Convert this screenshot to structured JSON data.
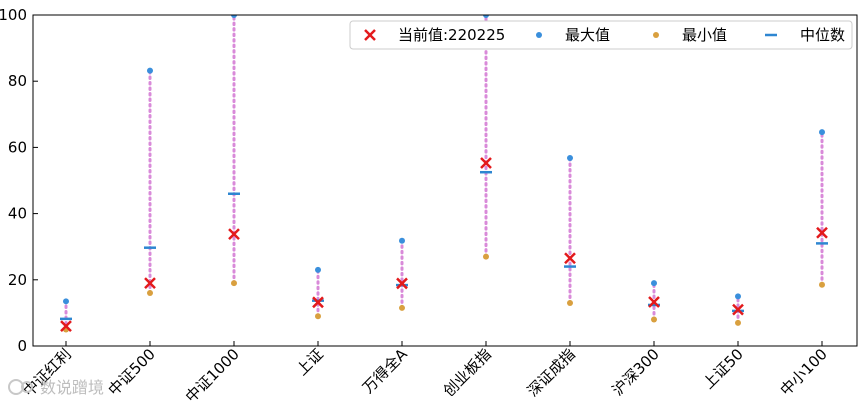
{
  "chart_data": {
    "type": "scatter",
    "categories": [
      "中证红利",
      "中证500",
      "中证1000",
      "上证",
      "万得全A",
      "创业板指",
      "深证成指",
      "沪深300",
      "上证50",
      "中小100"
    ],
    "series": [
      {
        "name": "当前值:220225",
        "values": [
          6.0,
          19.0,
          33.8,
          13.2,
          18.9,
          55.3,
          26.5,
          13.3,
          11.0,
          34.2
        ]
      },
      {
        "name": "最大值",
        "values": [
          13.5,
          83.2,
          100,
          23.0,
          31.8,
          100,
          56.8,
          19.0,
          15.0,
          64.6
        ]
      },
      {
        "name": "最小值",
        "values": [
          5.0,
          16.0,
          19.0,
          9.0,
          11.5,
          27.0,
          13.0,
          8.0,
          7.0,
          18.5
        ]
      },
      {
        "name": "中位数",
        "values": [
          8.2,
          29.7,
          46.0,
          13.7,
          18.4,
          52.5,
          24.0,
          12.4,
          10.6,
          31.0
        ]
      }
    ],
    "ylim": [
      0,
      100
    ],
    "yticks": [
      "0",
      "20",
      "40",
      "60",
      "80",
      "100"
    ],
    "legend_position": "top-right",
    "colors": {
      "current": "#e31a1c",
      "max": "#3a8fdc",
      "min": "#d9a03f",
      "median": "#2e86d1",
      "range_line": "#d98ad9"
    }
  },
  "legend": {
    "current_label": "当前值:220225",
    "max_label": "最大值",
    "min_label": "最小值",
    "median_label": "中位数"
  },
  "watermark": {
    "text": "数说蹭境"
  }
}
